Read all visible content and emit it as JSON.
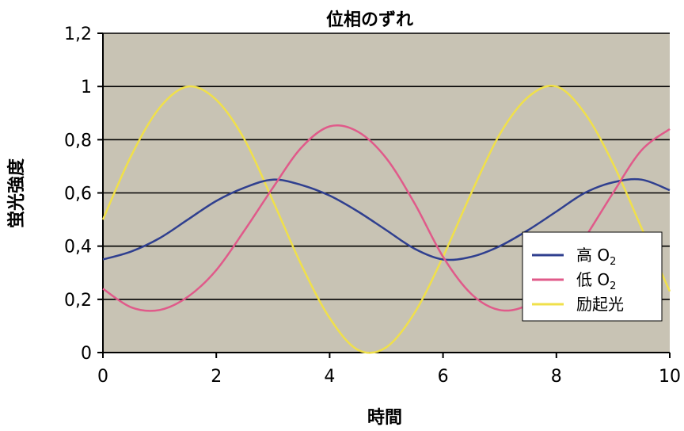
{
  "chart_data": {
    "type": "line",
    "title": "位相のずれ",
    "xlabel": "時間",
    "ylabel": "蛍光強度",
    "xlim": [
      0,
      10
    ],
    "ylim": [
      0,
      1.2
    ],
    "x_ticks": [
      "0",
      "2",
      "4",
      "6",
      "8",
      "10"
    ],
    "y_ticks": [
      "0",
      "0,2",
      "0,4",
      "0,6",
      "0,8",
      "1",
      "1,2"
    ],
    "grid": "horizontal",
    "legend_position": "right",
    "plot_background": "#c8c3b4",
    "series": [
      {
        "name": "高 O2",
        "legend_main": "高 O",
        "legend_sub": "2",
        "color": "#2f3f8f",
        "x": [
          0,
          0.5,
          1,
          1.5,
          2,
          2.5,
          3,
          3.5,
          4,
          4.5,
          5,
          5.5,
          6,
          6.5,
          7,
          7.5,
          8,
          8.5,
          9,
          9.5,
          10
        ],
        "y": [
          0.35,
          0.38,
          0.43,
          0.5,
          0.57,
          0.62,
          0.65,
          0.63,
          0.59,
          0.53,
          0.46,
          0.39,
          0.35,
          0.36,
          0.4,
          0.46,
          0.53,
          0.6,
          0.64,
          0.65,
          0.61
        ]
      },
      {
        "name": "低 O2",
        "legend_main": "低 O",
        "legend_sub": "2",
        "color": "#e05a8a",
        "x": [
          0,
          0.5,
          1,
          1.5,
          2,
          2.5,
          3,
          3.5,
          4,
          4.5,
          5,
          5.5,
          6,
          6.5,
          7,
          7.5,
          8,
          8.5,
          9,
          9.5,
          10
        ],
        "y": [
          0.24,
          0.17,
          0.16,
          0.21,
          0.31,
          0.46,
          0.62,
          0.77,
          0.85,
          0.83,
          0.73,
          0.56,
          0.36,
          0.22,
          0.16,
          0.18,
          0.27,
          0.43,
          0.6,
          0.76,
          0.84
        ]
      },
      {
        "name": "励起光",
        "legend_main": "励起光",
        "legend_sub": "",
        "color": "#f0e04a",
        "x": [
          0,
          0.5,
          1,
          1.5,
          2,
          2.5,
          3,
          3.5,
          4,
          4.5,
          5,
          5.5,
          6,
          6.5,
          7,
          7.5,
          8,
          8.5,
          9,
          9.5,
          10
        ],
        "y": [
          0.5,
          0.74,
          0.92,
          1.0,
          0.95,
          0.8,
          0.57,
          0.33,
          0.13,
          0.01,
          0.02,
          0.15,
          0.36,
          0.6,
          0.82,
          0.96,
          1.0,
          0.9,
          0.71,
          0.47,
          0.23
        ]
      }
    ]
  }
}
